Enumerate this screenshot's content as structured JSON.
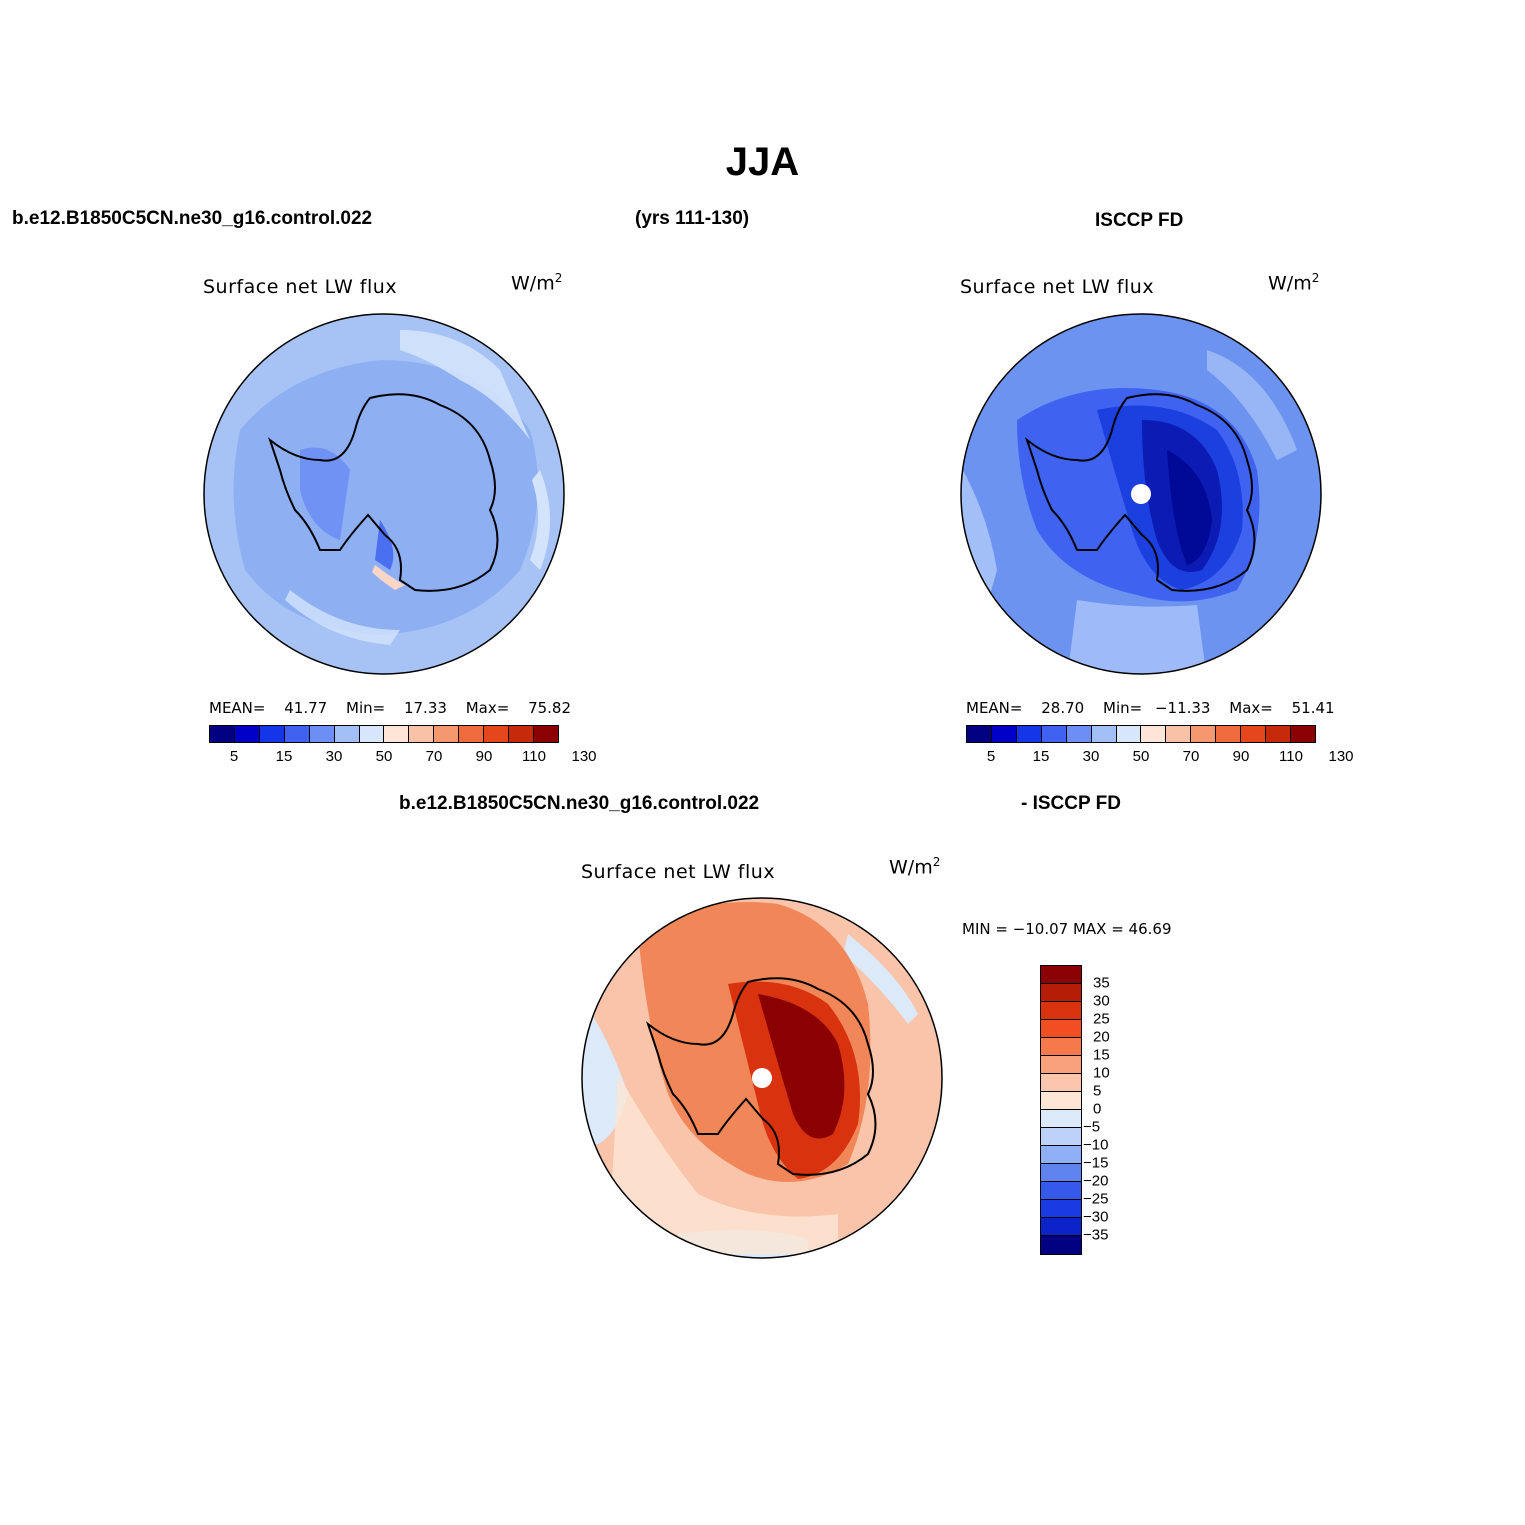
{
  "title": "JJA",
  "header": {
    "case_name": "b.e12.B1850C5CN.ne30_g16.control.022",
    "years": "(yrs 111-130)",
    "obs_name": "ISCCP FD",
    "diff_case": "b.e12.B1850C5CN.ne30_g16.control.022",
    "diff_obs": "- ISCCP FD"
  },
  "panels": {
    "model": {
      "title": "Surface net LW flux",
      "units": "W/m",
      "units_sup": "2",
      "mean_label": "MEAN=",
      "mean": "41.77",
      "min_label": "Min=",
      "min": "17.33",
      "max_label": "Max=",
      "max": "75.82"
    },
    "obs": {
      "title": "Surface net LW flux",
      "units": "W/m",
      "units_sup": "2",
      "mean_label": "MEAN=",
      "mean": "28.70",
      "min_label": "Min=",
      "min": "−11.33",
      "max_label": "Max=",
      "max": "51.41"
    },
    "diff": {
      "title": "Surface net LW flux",
      "units": "W/m",
      "units_sup": "2",
      "minmax": "MIN = −10.07 MAX =   46.69"
    }
  },
  "colorbar_main": {
    "colors": [
      "#000080",
      "#0000c8",
      "#1535e8",
      "#3f63f0",
      "#6d8ff5",
      "#a3bff8",
      "#d7e6fb",
      "#fde6d8",
      "#f9c1a6",
      "#f5976f",
      "#ef6a3d",
      "#e5461b",
      "#c62a0a",
      "#8b0000"
    ],
    "tick_labels": [
      "5",
      "15",
      "30",
      "50",
      "70",
      "90",
      "110",
      "130"
    ]
  },
  "colorbar_diff": {
    "colors": [
      "#8b0000",
      "#b51d06",
      "#d8320f",
      "#f14e22",
      "#f5794b",
      "#f8a17c",
      "#fbc6ad",
      "#fde6d6",
      "#dce9f9",
      "#bcd2f7",
      "#8fb0f4",
      "#5f84ef",
      "#3658eb",
      "#1a3be4",
      "#0b23c8",
      "#000080"
    ],
    "tick_labels": [
      "35",
      "30",
      "25",
      "20",
      "15",
      "10",
      "5",
      "0",
      "−5",
      "−10",
      "−15",
      "−20",
      "−25",
      "−30",
      "−35"
    ]
  },
  "palette": {
    "model_base": "#a7c3f6",
    "model_mid": "#8eb0f3",
    "obs_base": "#6d93f1",
    "obs_dark": "#1c3fe0",
    "obs_darkest": "#000a96",
    "diff_base": "#f9c4aa",
    "diff_mid": "#f18758",
    "diff_dark": "#c02806"
  }
}
